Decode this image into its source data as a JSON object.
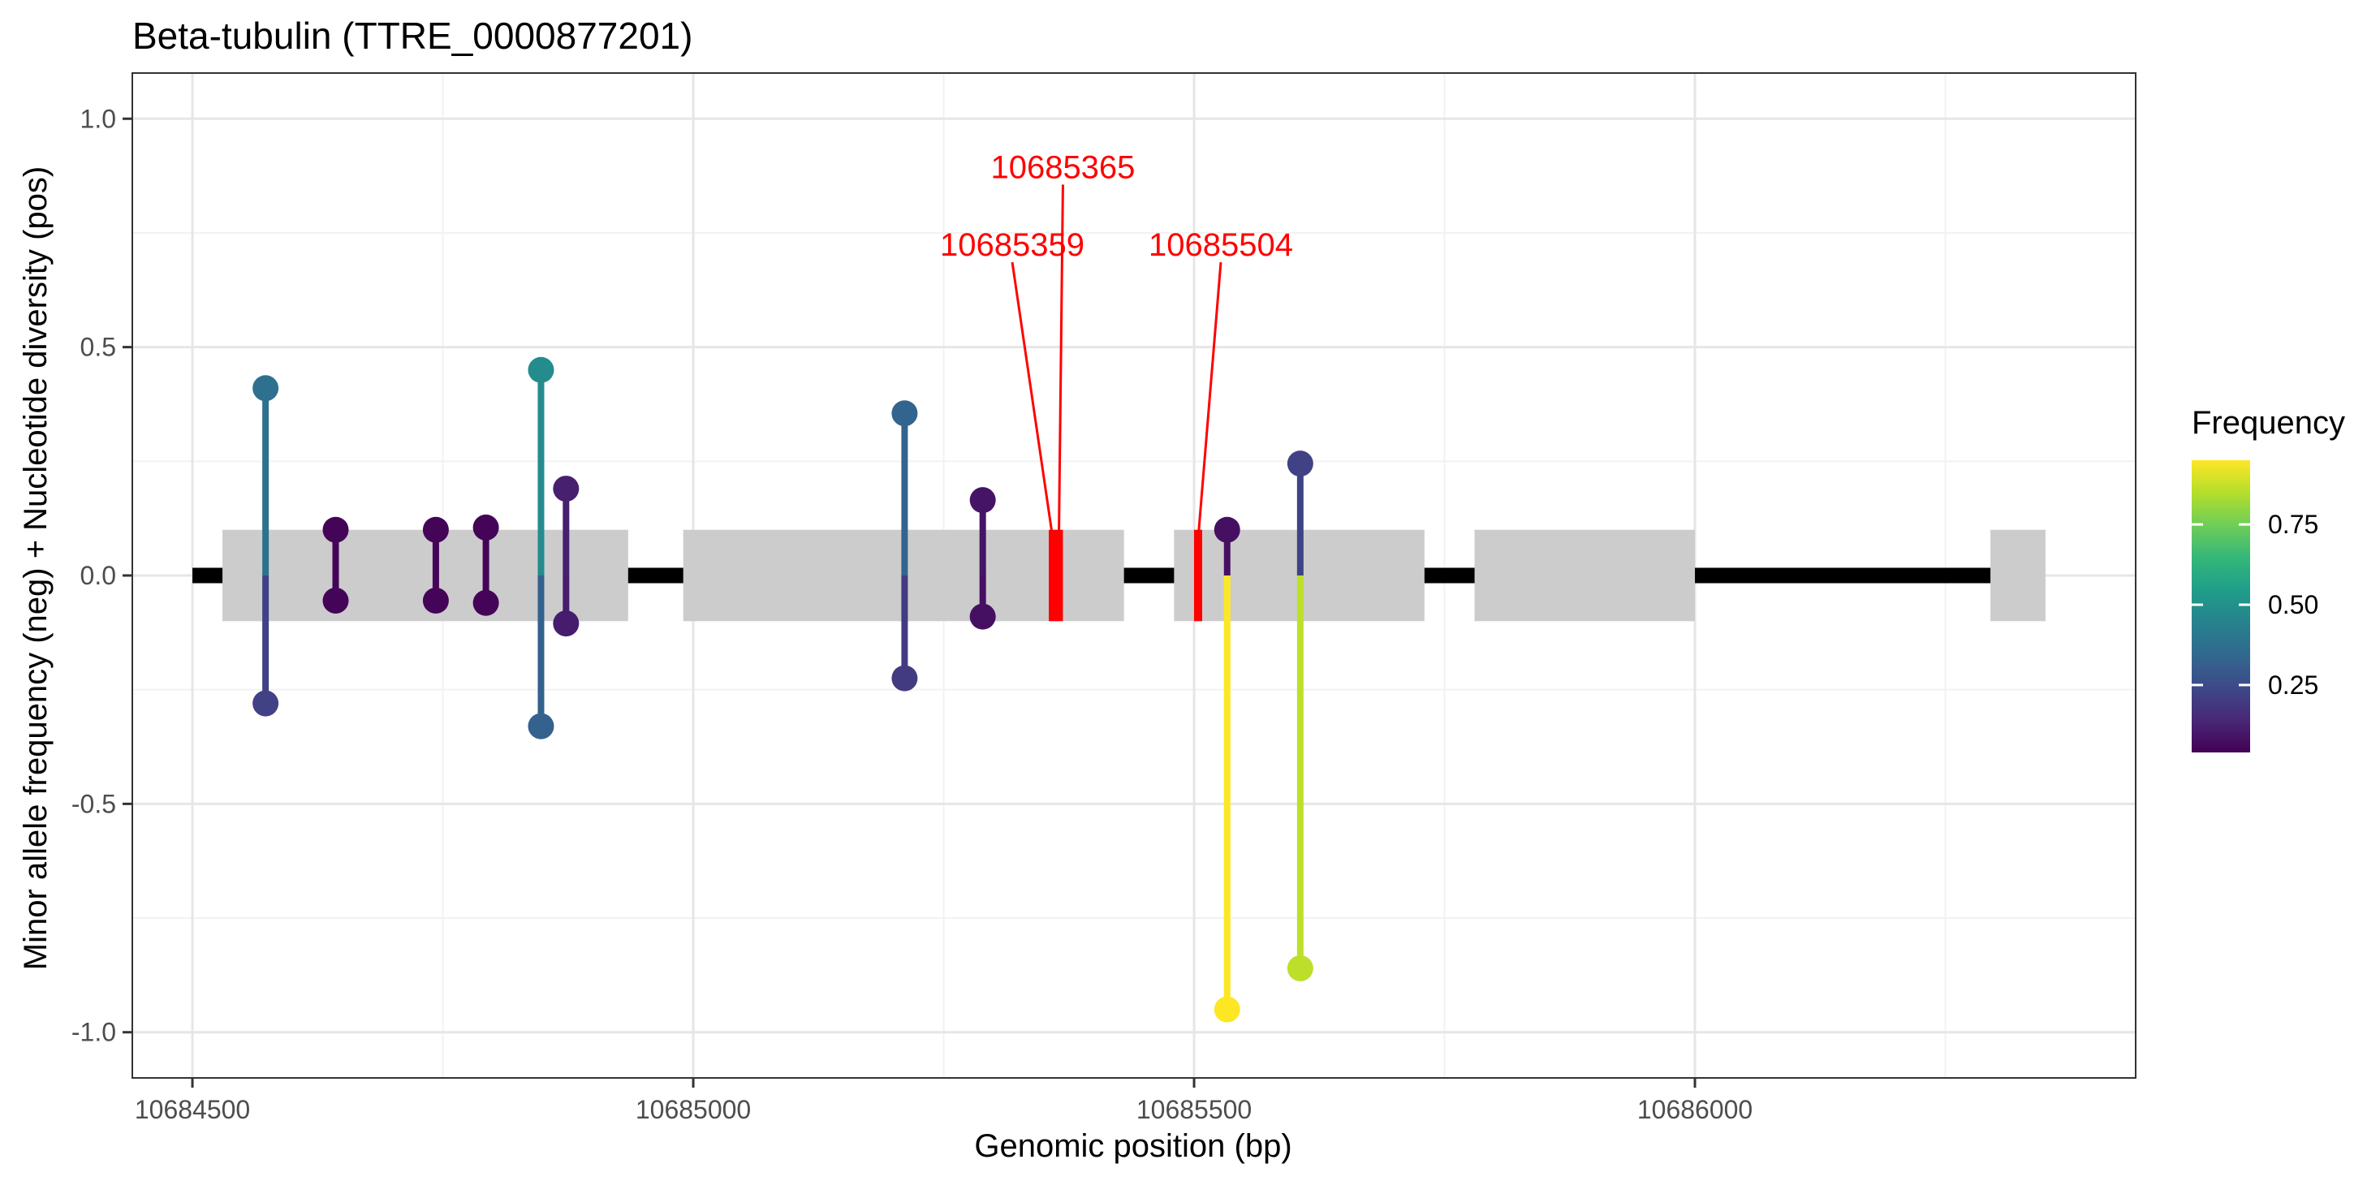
{
  "chart_data": {
    "type": "scatter",
    "title": "Beta-tubulin (TTRE_0000877201)",
    "xlabel": "Genomic position (bp)",
    "ylabel": "Minor allele frequency (neg) + Nucleotide diversity (pos)",
    "xlim": [
      10684440,
      10686440
    ],
    "ylim": [
      -1.1,
      1.1
    ],
    "x_ticks": [
      10684500,
      10685000,
      10685500,
      10686000
    ],
    "x_tick_labels": [
      "10684500",
      "10685000",
      "10685500",
      "10686000"
    ],
    "y_ticks": [
      1.0,
      0.5,
      0.0,
      -0.5,
      -1.0
    ],
    "y_tick_labels": [
      "1.0",
      "0.5",
      "0.0",
      "-0.5",
      "-1.0"
    ],
    "grid": true,
    "legend": {
      "title": "Frequency",
      "position": "right",
      "colormap": "viridis",
      "range": [
        0.04,
        0.95
      ],
      "ticks": [
        0.25,
        0.5,
        0.75
      ],
      "tick_labels": [
        "0.25",
        "0.50",
        "0.75"
      ]
    },
    "gene_model": {
      "intron_line": [
        10684500,
        10686300
      ],
      "exons": [
        [
          10684530,
          10684935
        ],
        [
          10684990,
          10685430
        ],
        [
          10685480,
          10685730
        ],
        [
          10685780,
          10686000
        ],
        [
          10686295,
          10686350
        ]
      ],
      "exon_height": [
        -0.1,
        0.1
      ]
    },
    "variants": [
      {
        "x": 10684573,
        "pos": 0.41,
        "neg": -0.28,
        "pos_freq": 0.38,
        "neg_freq": 0.22
      },
      {
        "x": 10684643,
        "pos": 0.1,
        "neg": -0.055,
        "pos_freq": 0.05,
        "neg_freq": 0.05
      },
      {
        "x": 10684743,
        "pos": 0.1,
        "neg": -0.055,
        "pos_freq": 0.05,
        "neg_freq": 0.05
      },
      {
        "x": 10684793,
        "pos": 0.105,
        "neg": -0.06,
        "pos_freq": 0.05,
        "neg_freq": 0.05
      },
      {
        "x": 10684848,
        "pos": 0.45,
        "neg": -0.33,
        "pos_freq": 0.48,
        "neg_freq": 0.32
      },
      {
        "x": 10684873,
        "pos": 0.19,
        "neg": -0.105,
        "pos_freq": 0.12,
        "neg_freq": 0.11
      },
      {
        "x": 10685211,
        "pos": 0.355,
        "neg": -0.225,
        "pos_freq": 0.33,
        "neg_freq": 0.2
      },
      {
        "x": 10685289,
        "pos": 0.165,
        "neg": -0.09,
        "pos_freq": 0.09,
        "neg_freq": 0.08
      },
      {
        "x": 10685533,
        "pos": 0.1,
        "neg": -0.95,
        "pos_freq": 0.08,
        "neg_freq": 0.95
      },
      {
        "x": 10685606,
        "pos": 0.245,
        "neg": -0.86,
        "pos_freq": 0.22,
        "neg_freq": 0.86
      }
    ],
    "highlighted_positions": [
      {
        "x": 10685359,
        "label": "10685359"
      },
      {
        "x": 10685365,
        "label": "10685365"
      },
      {
        "x": 10685504,
        "label": "10685504"
      }
    ],
    "highlight_color": "#ff0000"
  }
}
